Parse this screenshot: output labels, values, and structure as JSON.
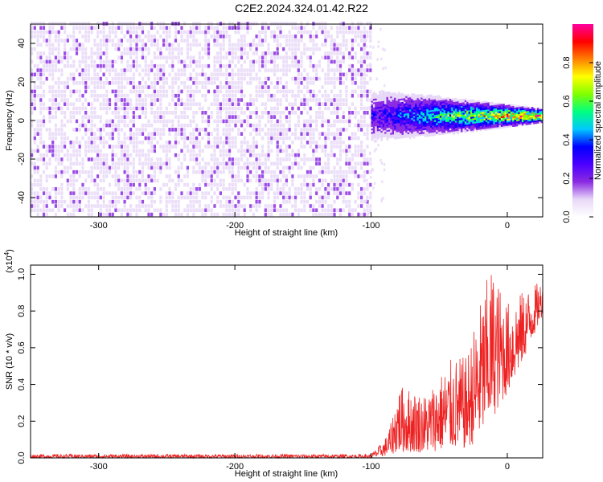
{
  "title": "C2E2.2024.324.01.42.R22",
  "chart_data": [
    {
      "type": "heatmap",
      "xlabel": "Height of straight line (km)",
      "ylabel": "Frequency (Hz)",
      "xlim": [
        -350,
        26
      ],
      "ylim": [
        -50,
        50
      ],
      "xticks": [
        -300,
        -200,
        -100,
        0
      ],
      "xtick_labels": [
        "-300",
        "-200",
        "-100",
        "0"
      ],
      "yticks": [
        -40,
        -20,
        0,
        20,
        40
      ],
      "ytick_labels": [
        "-40",
        "-20",
        "0",
        "20",
        "40"
      ],
      "colorbar": {
        "label": "Normalized spectral amplitude",
        "range": [
          0,
          1
        ],
        "ticks": [
          0.0,
          0.2,
          0.4,
          0.6,
          0.8
        ],
        "tick_labels": [
          "0.0",
          "0.2",
          "0.4",
          "0.6",
          "0.8"
        ],
        "colors": [
          "#ffffff",
          "#e8d8f8",
          "#8a2be2",
          "#4b00ff",
          "#0000ff",
          "#00c8ff",
          "#00ff80",
          "#80ff00",
          "#ffff00",
          "#ff8000",
          "#ff0000",
          "#ff00a0"
        ]
      },
      "regions": [
        {
          "name": "noise",
          "x_range": [
            -350,
            -100
          ],
          "f_range": [
            -50,
            50
          ],
          "level": 0.15
        },
        {
          "name": "signal-trace",
          "x_range": [
            -100,
            26
          ],
          "f_center": [
            2,
            2
          ],
          "f_halfwidth_start": 8,
          "f_halfwidth_end": 2,
          "level_start": 0.3,
          "level_end": 1.0
        }
      ]
    },
    {
      "type": "line",
      "xlabel": "Height of straight line (km)",
      "ylabel": "SNR (10 * v/v)",
      "multiplier_label": "(x10",
      "multiplier_exp": "4",
      "multiplier_close": ")",
      "xlim": [
        -350,
        26
      ],
      "ylim": [
        0,
        1.05
      ],
      "xticks": [
        -300,
        -200,
        -100,
        0
      ],
      "xtick_labels": [
        "-300",
        "-200",
        "-100",
        "0"
      ],
      "yticks": [
        0.0,
        0.2,
        0.4,
        0.6,
        0.8,
        1.0
      ],
      "ytick_labels": [
        "0.0",
        "0.2",
        "0.4",
        "0.6",
        "0.8",
        "1.0"
      ],
      "color": "#ee2222",
      "envelope": [
        {
          "x": -350,
          "low": 0.0,
          "high": 0.02
        },
        {
          "x": -100,
          "low": 0.0,
          "high": 0.02
        },
        {
          "x": -90,
          "low": 0.01,
          "high": 0.1
        },
        {
          "x": -85,
          "low": 0.02,
          "high": 0.2
        },
        {
          "x": -80,
          "low": 0.03,
          "high": 0.4
        },
        {
          "x": -60,
          "low": 0.03,
          "high": 0.35
        },
        {
          "x": -40,
          "low": 0.05,
          "high": 0.55
        },
        {
          "x": -30,
          "low": 0.05,
          "high": 0.55
        },
        {
          "x": -20,
          "low": 0.1,
          "high": 0.85
        },
        {
          "x": -12,
          "low": 0.2,
          "high": 1.05
        },
        {
          "x": 0,
          "low": 0.35,
          "high": 0.85
        },
        {
          "x": 10,
          "low": 0.5,
          "high": 0.9
        },
        {
          "x": 26,
          "low": 0.78,
          "high": 0.97
        }
      ]
    }
  ]
}
